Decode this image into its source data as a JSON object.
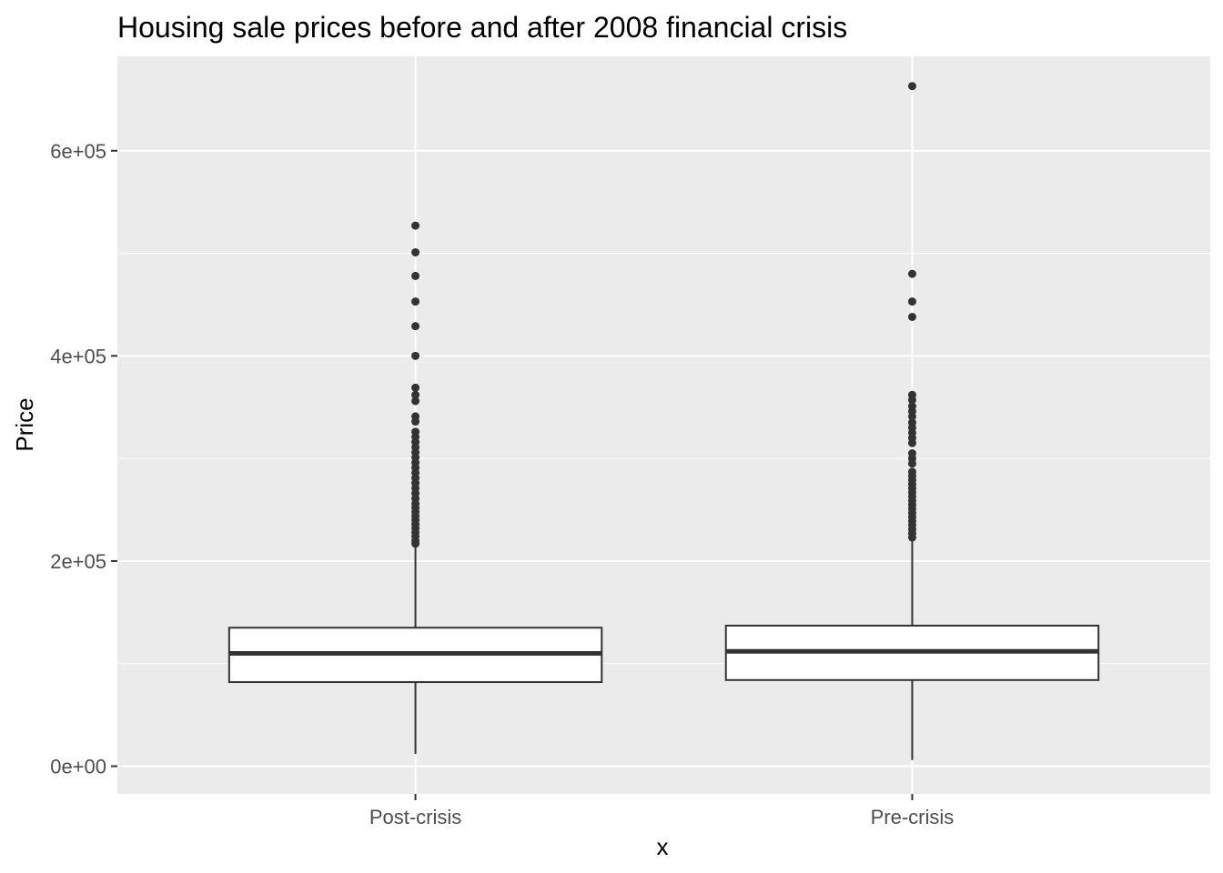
{
  "chart_data": {
    "type": "boxplot",
    "title": "Housing sale prices before and after 2008 financial crisis",
    "xlabel": "x",
    "ylabel": "Price",
    "categories": [
      "Post-crisis",
      "Pre-crisis"
    ],
    "ylim": [
      -27000,
      692000
    ],
    "y_ticks": [
      {
        "value": 0,
        "label": "0e+00"
      },
      {
        "value": 200000,
        "label": "2e+05"
      },
      {
        "value": 400000,
        "label": "4e+05"
      },
      {
        "value": 600000,
        "label": "6e+05"
      }
    ],
    "grid": true,
    "legend": "none",
    "boxes": [
      {
        "category": "Post-crisis",
        "whisker_low": 12000,
        "q1": 82000,
        "median": 110000,
        "q3": 135000,
        "whisker_high": 214000,
        "outliers": [
          527000,
          501000,
          478000,
          453000,
          429000,
          400000,
          369000,
          362000,
          356000,
          341000,
          336000,
          326000,
          321000,
          316000,
          311000,
          306000,
          301000,
          296000,
          291000,
          286000,
          281000,
          276000,
          271000,
          266000,
          261000,
          256000,
          252000,
          248000,
          244000,
          240000,
          236000,
          232000,
          228000,
          224000,
          220000,
          217000
        ]
      },
      {
        "category": "Pre-crisis",
        "whisker_low": 6000,
        "q1": 84000,
        "median": 112000,
        "q3": 137000,
        "whisker_high": 220000,
        "outliers": [
          663000,
          480000,
          453000,
          438000,
          362000,
          357000,
          351000,
          346000,
          341000,
          335000,
          330000,
          325000,
          320000,
          315000,
          305000,
          300000,
          295000,
          287000,
          283000,
          279000,
          275000,
          271000,
          267000,
          263000,
          259000,
          255000,
          251000,
          247000,
          243000,
          239000,
          235000,
          231000,
          227000,
          223000
        ]
      }
    ]
  },
  "colors": {
    "panel_background": "#ebebeb",
    "grid_major": "#ffffff",
    "grid_minor": "#f5f5f5",
    "box_fill": "#ffffff",
    "box_stroke": "#333333",
    "outlier": "#333333",
    "tick": "#333333"
  }
}
